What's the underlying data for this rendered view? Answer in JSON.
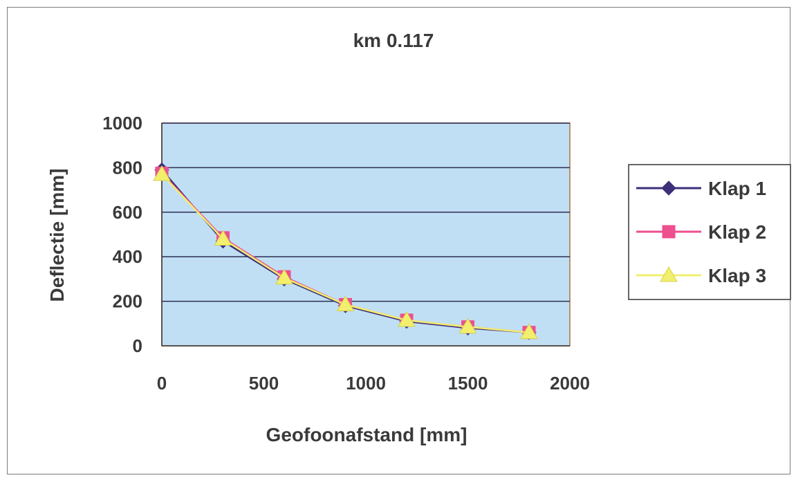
{
  "chart_data": {
    "type": "line",
    "title": "km 0.117",
    "xlabel": "Geofoonafstand [mm]",
    "ylabel": "Deflectie [mm]",
    "xlim": [
      0,
      2000
    ],
    "ylim": [
      0,
      1000
    ],
    "x_ticks": [
      "0",
      "500",
      "1000",
      "1500",
      "2000"
    ],
    "y_ticks": [
      "0",
      "200",
      "400",
      "600",
      "800",
      "1000"
    ],
    "grid": "horizontal major gridlines",
    "legend_position": "right",
    "plot_background": "#c0dff4",
    "x": [
      0,
      300,
      600,
      900,
      1200,
      1500,
      1800
    ],
    "series": [
      {
        "name": "Klap 1",
        "color": "#3d2f7a",
        "marker": "diamond",
        "values": [
          790,
          470,
          300,
          180,
          110,
          80,
          60
        ]
      },
      {
        "name": "Klap 2",
        "color": "#ee4f8f",
        "marker": "square",
        "values": [
          775,
          485,
          310,
          185,
          115,
          85,
          60
        ]
      },
      {
        "name": "Klap 3",
        "color": "#f2ef6e",
        "marker": "triangle",
        "values": [
          770,
          480,
          305,
          185,
          115,
          85,
          60
        ]
      }
    ]
  }
}
